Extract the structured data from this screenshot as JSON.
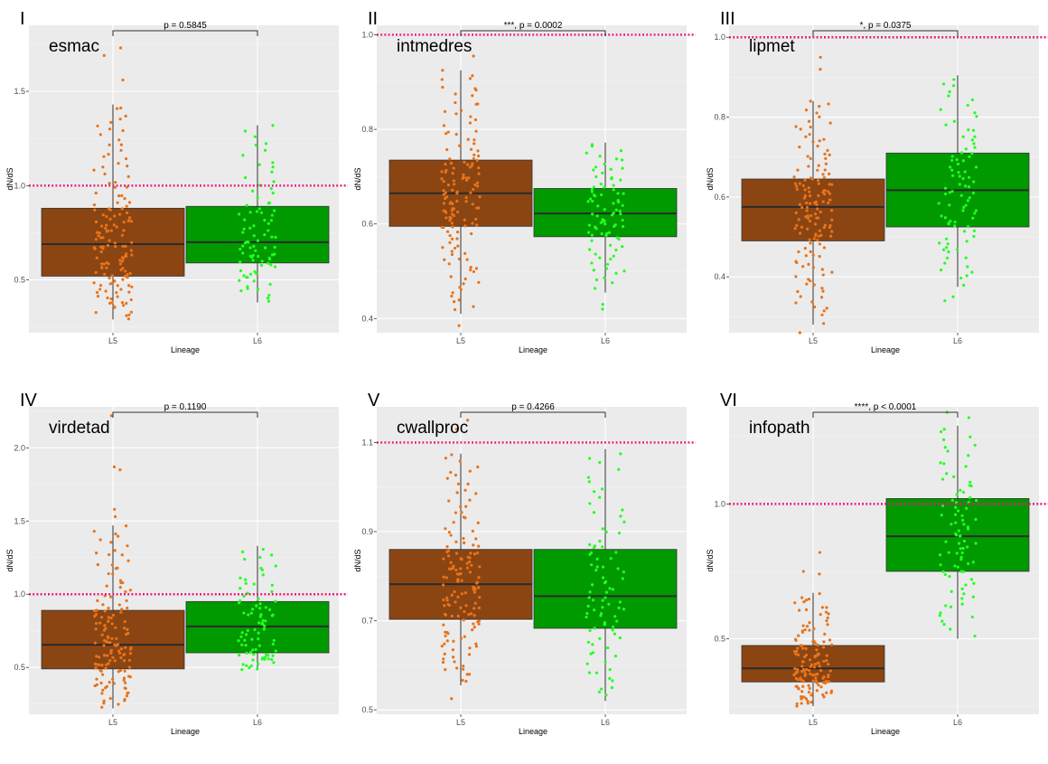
{
  "chart_data": [
    {
      "type": "box",
      "panel_label": "I",
      "title": "esmac",
      "xlabel": "Lineage",
      "ylabel": "dN/dS",
      "ylim": [
        0.22,
        1.85
      ],
      "yticks": [
        0.5,
        1.0,
        1.5
      ],
      "ytick_labels": [
        "0.5",
        "1.0",
        "1.5"
      ],
      "reference_line": 1.0,
      "significance": "p = 0.5845",
      "groups": [
        {
          "name": "L5",
          "color": "#8B4513",
          "point_color": "#E8731A",
          "whisker_low": 0.29,
          "q1": 0.52,
          "median": 0.69,
          "q3": 0.88,
          "whisker_high": 1.43,
          "outliers": [
            1.56,
            1.69,
            1.73
          ],
          "n": 140
        },
        {
          "name": "L6",
          "color": "#009900",
          "point_color": "#22FF22",
          "whisker_low": 0.38,
          "q1": 0.59,
          "median": 0.7,
          "q3": 0.89,
          "whisker_high": 1.32,
          "outliers": [],
          "n": 85
        }
      ]
    },
    {
      "type": "box",
      "panel_label": "II",
      "title": "intmedres",
      "xlabel": "Lineage",
      "ylabel": "dN/dS",
      "ylim": [
        0.37,
        1.02
      ],
      "yticks": [
        0.4,
        0.6,
        0.8,
        1.0
      ],
      "ytick_labels": [
        "0.4",
        "0.6",
        "0.8",
        "1.0"
      ],
      "reference_line": 1.0,
      "significance": "***, p = 0.0002",
      "groups": [
        {
          "name": "L5",
          "color": "#8B4513",
          "point_color": "#E8731A",
          "whisker_low": 0.41,
          "q1": 0.595,
          "median": 0.665,
          "q3": 0.735,
          "whisker_high": 0.925,
          "outliers": [
            0.385,
            0.955
          ],
          "n": 140
        },
        {
          "name": "L6",
          "color": "#009900",
          "point_color": "#22FF22",
          "whisker_low": 0.455,
          "q1": 0.573,
          "median": 0.622,
          "q3": 0.675,
          "whisker_high": 0.772,
          "outliers": [
            0.42,
            0.43
          ],
          "n": 85
        }
      ]
    },
    {
      "type": "box",
      "panel_label": "III",
      "title": "lipmet",
      "xlabel": "Lineage",
      "ylabel": "dN/dS",
      "ylim": [
        0.26,
        1.03
      ],
      "yticks": [
        0.4,
        0.6,
        0.8,
        1.0
      ],
      "ytick_labels": [
        "0.4",
        "0.6",
        "0.8",
        "1.0"
      ],
      "reference_line": 1.0,
      "significance": "*, p = 0.0375",
      "groups": [
        {
          "name": "L5",
          "color": "#8B4513",
          "point_color": "#E8731A",
          "whisker_low": 0.28,
          "q1": 0.49,
          "median": 0.575,
          "q3": 0.645,
          "whisker_high": 0.84,
          "outliers": [
            0.26,
            0.92,
            0.95
          ],
          "n": 140
        },
        {
          "name": "L6",
          "color": "#009900",
          "point_color": "#22FF22",
          "whisker_low": 0.375,
          "q1": 0.525,
          "median": 0.617,
          "q3": 0.71,
          "whisker_high": 0.905,
          "outliers": [
            0.34,
            0.35
          ],
          "n": 85
        }
      ]
    },
    {
      "type": "box",
      "panel_label": "IV",
      "title": "virdetad",
      "xlabel": "Lineage",
      "ylabel": "dN/dS",
      "ylim": [
        0.18,
        2.28
      ],
      "yticks": [
        0.5,
        1.0,
        1.5,
        2.0
      ],
      "ytick_labels": [
        "0.5",
        "1.0",
        "1.5",
        "2.0"
      ],
      "reference_line": 1.0,
      "significance": "p = 0.1190",
      "groups": [
        {
          "name": "L5",
          "color": "#8B4513",
          "point_color": "#E8731A",
          "whisker_low": 0.22,
          "q1": 0.49,
          "median": 0.655,
          "q3": 0.89,
          "whisker_high": 1.47,
          "outliers": [
            1.53,
            1.58,
            1.85,
            1.87,
            2.22
          ],
          "n": 140
        },
        {
          "name": "L6",
          "color": "#009900",
          "point_color": "#22FF22",
          "whisker_low": 0.48,
          "q1": 0.6,
          "median": 0.78,
          "q3": 0.95,
          "whisker_high": 1.33,
          "outliers": [],
          "n": 85
        }
      ]
    },
    {
      "type": "box",
      "panel_label": "V",
      "title": "cwallproc",
      "xlabel": "Lineage",
      "ylabel": "dN/dS",
      "ylim": [
        0.49,
        1.18
      ],
      "yticks": [
        0.5,
        0.7,
        0.9,
        1.1
      ],
      "ytick_labels": [
        "0.5",
        "0.7",
        "0.9",
        "1.1"
      ],
      "reference_line": 1.1,
      "significance": "p = 0.4266",
      "groups": [
        {
          "name": "L5",
          "color": "#8B4513",
          "point_color": "#E8731A",
          "whisker_low": 0.555,
          "q1": 0.703,
          "median": 0.782,
          "q3": 0.86,
          "whisker_high": 1.075,
          "outliers": [
            0.525,
            1.13,
            1.15
          ],
          "n": 140
        },
        {
          "name": "L6",
          "color": "#009900",
          "point_color": "#22FF22",
          "whisker_low": 0.52,
          "q1": 0.683,
          "median": 0.755,
          "q3": 0.86,
          "whisker_high": 1.085,
          "outliers": [
            0.54
          ],
          "n": 85
        }
      ]
    },
    {
      "type": "box",
      "panel_label": "VI",
      "title": "infopath",
      "xlabel": "Lineage",
      "ylabel": "dN/dS",
      "ylim": [
        0.22,
        1.36
      ],
      "yticks": [
        0.5,
        1.0
      ],
      "ytick_labels": [
        "0.5",
        "1.0"
      ],
      "reference_line": 1.0,
      "significance": "****, p < 0.0001",
      "groups": [
        {
          "name": "L5",
          "color": "#8B4513",
          "point_color": "#E8731A",
          "whisker_low": 0.25,
          "q1": 0.34,
          "median": 0.39,
          "q3": 0.475,
          "whisker_high": 0.67,
          "outliers": [
            0.74,
            0.75,
            0.82
          ],
          "n": 140
        },
        {
          "name": "L6",
          "color": "#009900",
          "point_color": "#22FF22",
          "whisker_low": 0.5,
          "q1": 0.75,
          "median": 0.88,
          "q3": 1.02,
          "whisker_high": 1.29,
          "outliers": [
            1.32,
            1.34
          ],
          "n": 85
        }
      ]
    }
  ]
}
